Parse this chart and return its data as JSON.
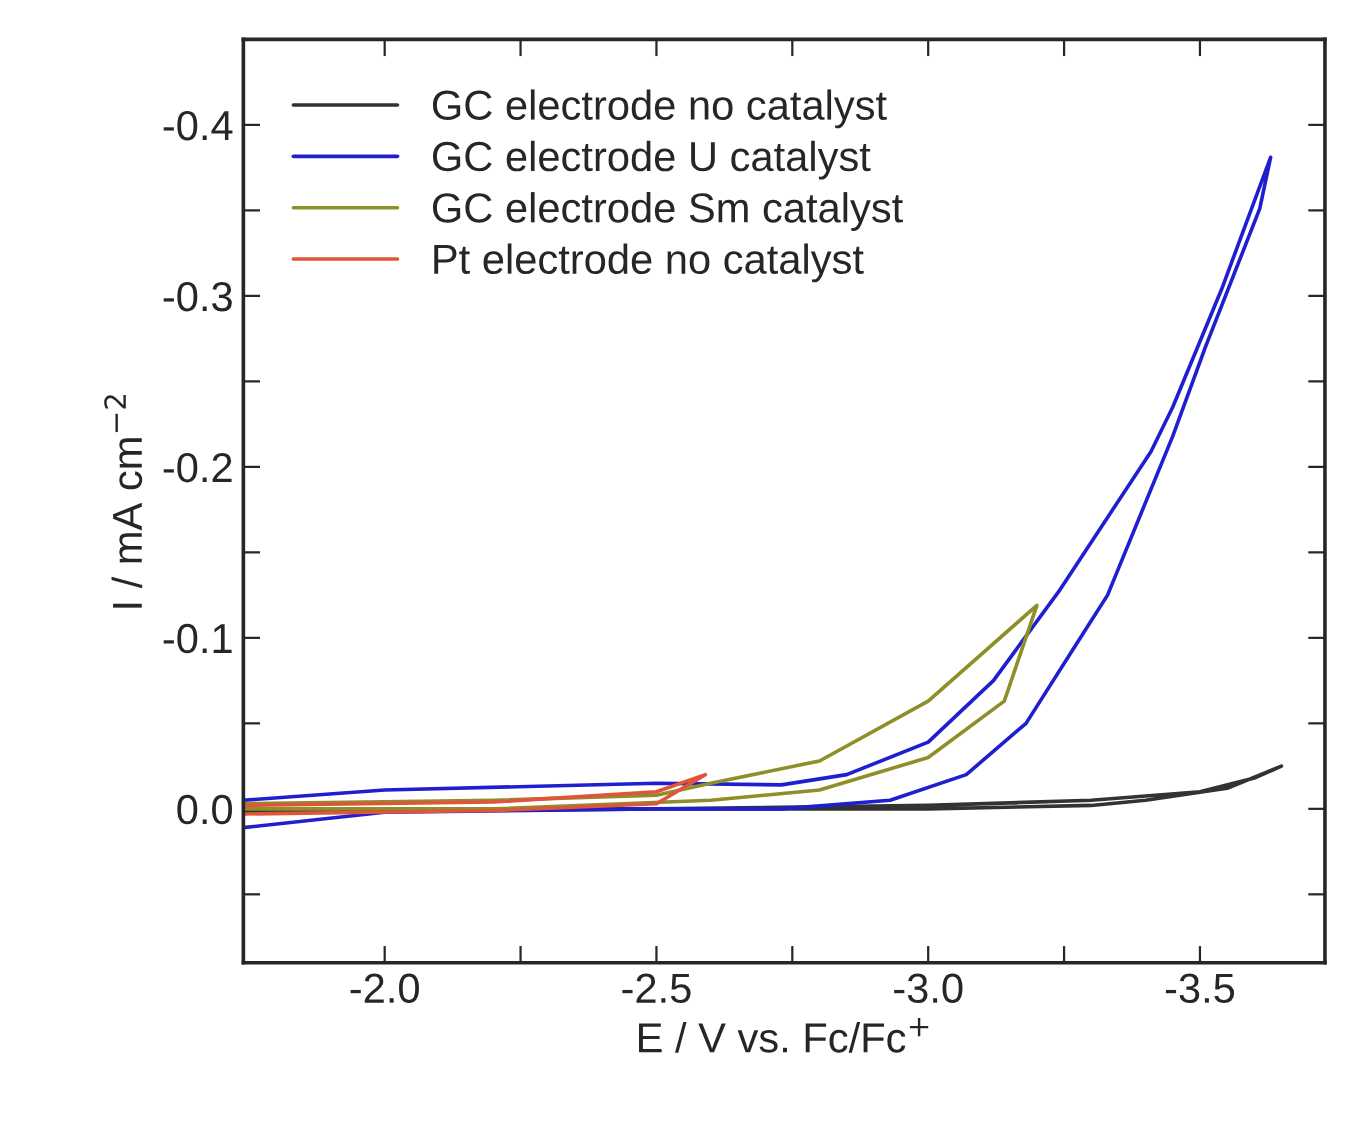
{
  "chart_data": {
    "type": "line",
    "xlabel": "E / V vs. Fc/Fc$^{+}$",
    "ylabel": "I / mA cm$^{−2}$",
    "xlim": [
      -1.74,
      -3.73
    ],
    "ylim": [
      0.09,
      -0.45
    ],
    "xticks": [
      {
        "value": -2.0,
        "label": "-2.0"
      },
      {
        "value": -2.25,
        "label": null
      },
      {
        "value": -2.5,
        "label": "-2.5"
      },
      {
        "value": -2.75,
        "label": null
      },
      {
        "value": -3.0,
        "label": "-3.0"
      },
      {
        "value": -3.25,
        "label": null
      },
      {
        "value": -3.5,
        "label": "-3.5"
      }
    ],
    "yticks": [
      {
        "value": 0.05,
        "label": null
      },
      {
        "value": 0.0,
        "label": "0.0"
      },
      {
        "value": -0.05,
        "label": null
      },
      {
        "value": -0.1,
        "label": "-0.1"
      },
      {
        "value": -0.15,
        "label": null
      },
      {
        "value": -0.2,
        "label": "-0.2"
      },
      {
        "value": -0.25,
        "label": null
      },
      {
        "value": -0.3,
        "label": "-0.3"
      },
      {
        "value": -0.35,
        "label": null
      },
      {
        "value": -0.4,
        "label": "-0.4"
      }
    ],
    "grid": false,
    "legend": "top left",
    "marker": "none",
    "line_style": "solid",
    "series": [
      {
        "name": "GC electrode no catalyst",
        "color": "#333333",
        "x": [
          -1.74,
          -2.5,
          -3.0,
          -3.3,
          -3.4,
          -3.55,
          -3.65,
          -3.6,
          -3.5,
          -3.3,
          -3.0,
          -2.5,
          -1.74
        ],
        "values": [
          0.0,
          0.0,
          0.0,
          -0.002,
          -0.005,
          -0.012,
          -0.025,
          -0.018,
          -0.01,
          -0.005,
          -0.002,
          0.0,
          0.002
        ]
      },
      {
        "name": "GC electrode U catalyst",
        "color": "#1f1fd0",
        "x": [
          -1.74,
          -2.0,
          -2.49,
          -2.73,
          -2.93,
          -3.07,
          -3.18,
          -3.29,
          -3.33,
          -3.45,
          -3.51,
          -3.61,
          -3.63,
          -3.54,
          -3.45,
          -3.41,
          -3.24,
          -3.12,
          -3.0,
          -2.85,
          -2.73,
          -2.5,
          -2.0,
          -1.74
        ],
        "values": [
          0.011,
          0.002,
          0.0,
          0.0,
          -0.005,
          -0.02,
          -0.05,
          -0.105,
          -0.125,
          -0.218,
          -0.27,
          -0.351,
          -0.381,
          -0.304,
          -0.235,
          -0.209,
          -0.127,
          -0.075,
          -0.039,
          -0.02,
          -0.014,
          -0.015,
          -0.011,
          -0.005
        ]
      },
      {
        "name": "GC electrode Sm catalyst",
        "color": "#8f8f2a",
        "x": [
          -1.74,
          -2.2,
          -2.6,
          -2.8,
          -3.0,
          -3.14,
          -3.2,
          -3.0,
          -2.8,
          -2.6,
          -2.5,
          -2.2,
          -1.74
        ],
        "values": [
          0.0,
          0.0,
          -0.005,
          -0.011,
          -0.03,
          -0.063,
          -0.119,
          -0.063,
          -0.028,
          -0.015,
          -0.008,
          -0.005,
          -0.003
        ]
      },
      {
        "name": "Pt electrode no catalyst",
        "color": "#e0553a",
        "x": [
          -1.74,
          -2.2,
          -2.5,
          -2.59,
          -2.5,
          -2.2,
          -1.74
        ],
        "values": [
          0.003,
          0.001,
          -0.003,
          -0.02,
          -0.01,
          -0.004,
          -0.002
        ]
      }
    ]
  }
}
